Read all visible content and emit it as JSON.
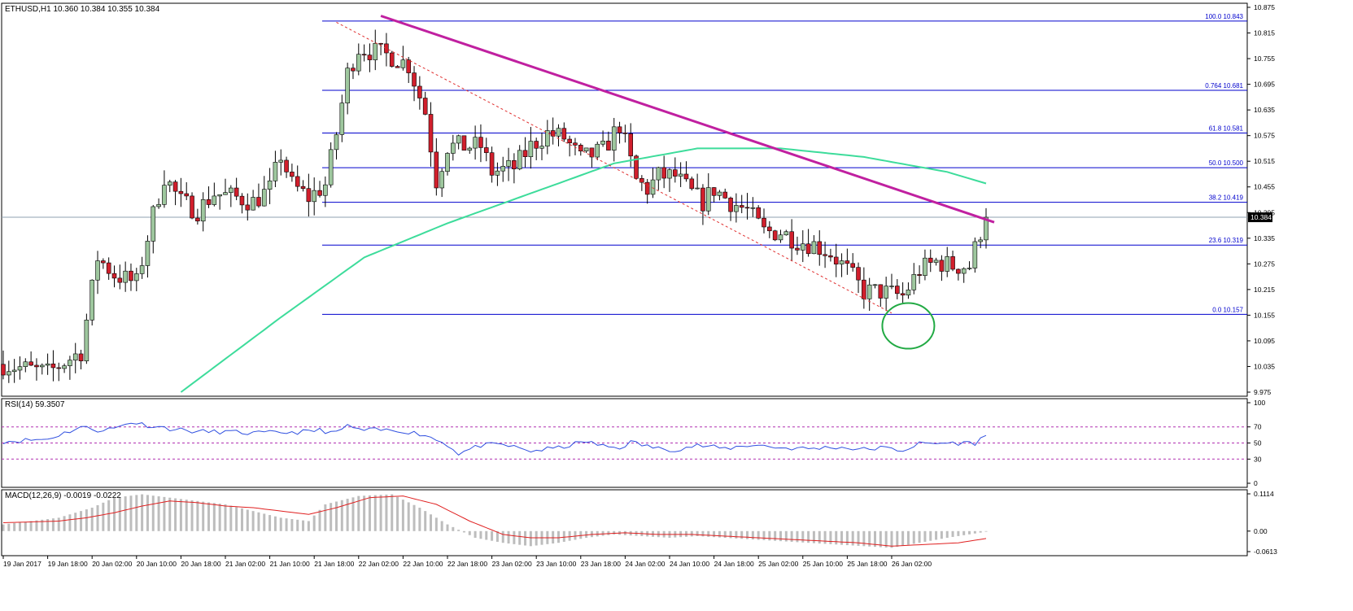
{
  "price_panel": {
    "header": "ETHUSD,H1  10.360 10.384 10.355 10.384",
    "y_ticks": [
      "10.875",
      "10.815",
      "10.755",
      "10.695",
      "10.635",
      "10.575",
      "10.515",
      "10.455",
      "10.395",
      "10.335",
      "10.275",
      "10.215",
      "10.155",
      "10.095",
      "10.035",
      "9.975"
    ],
    "current_price_label": "10.384"
  },
  "rsi_panel": {
    "header": "RSI(14) 59.3507",
    "y_ticks": [
      "100",
      "70",
      "50",
      "30",
      "0"
    ]
  },
  "macd_panel": {
    "header": "MACD(12,26,9) -0.0019 -0.0222",
    "y_ticks": [
      "0.1114",
      "0.00",
      "-0.0613"
    ]
  },
  "x_ticks": [
    "19 Jan 2017",
    "19 Jan 18:00",
    "20 Jan 02:00",
    "20 Jan 10:00",
    "20 Jan 18:00",
    "21 Jan 02:00",
    "21 Jan 10:00",
    "21 Jan 18:00",
    "22 Jan 02:00",
    "22 Jan 10:00",
    "22 Jan 18:00",
    "23 Jan 02:00",
    "23 Jan 10:00",
    "23 Jan 18:00",
    "24 Jan 02:00",
    "24 Jan 10:00",
    "24 Jan 18:00",
    "25 Jan 02:00",
    "25 Jan 10:00",
    "25 Jan 18:00",
    "26 Jan 02:00"
  ],
  "colors": {
    "bull_candle": "#9ec79e",
    "bear_candle": "#d11f2c",
    "wick": "#000000",
    "fib_line": "#0000cd",
    "fib_label": "#0000cd",
    "trendline": "#c020a0",
    "channel_line": "#e03030",
    "ma_line": "#3ddc9b",
    "rsi_line": "#3050e0",
    "rsi_levels": "#b030b0",
    "macd_histogram": "#bdbdbd",
    "macd_signal": "#e02020",
    "highlight_circle": "#22aa44",
    "price_line": "#8fa0b0"
  },
  "chart_data": [
    {
      "type": "candlestick",
      "symbol": "ETHUSD",
      "timeframe": "H1",
      "x_axis": "time",
      "ylim": [
        9.975,
        10.875
      ],
      "last_price": 10.384,
      "fibonacci_levels": [
        {
          "label": "100.0",
          "price": 10.843
        },
        {
          "label": "0.764",
          "price": 10.681
        },
        {
          "label": "61.8",
          "price": 10.581
        },
        {
          "label": "50.0",
          "price": 10.5
        },
        {
          "label": "38.2",
          "price": 10.419
        },
        {
          "label": "23.6",
          "price": 10.319
        },
        {
          "label": "0.0",
          "price": 10.157
        }
      ],
      "price_knots": [
        [
          0,
          10.04
        ],
        [
          8,
          10.02
        ],
        [
          14,
          10.07
        ],
        [
          17,
          10.29
        ],
        [
          20,
          10.25
        ],
        [
          24,
          10.23
        ],
        [
          27,
          10.39
        ],
        [
          29,
          10.48
        ],
        [
          32,
          10.42
        ],
        [
          35,
          10.4
        ],
        [
          38,
          10.44
        ],
        [
          42,
          10.43
        ],
        [
          45,
          10.42
        ],
        [
          48,
          10.45
        ],
        [
          50,
          10.53
        ],
        [
          52,
          10.46
        ],
        [
          55,
          10.43
        ],
        [
          58,
          10.46
        ],
        [
          60,
          10.58
        ],
        [
          62,
          10.72
        ],
        [
          64,
          10.78
        ],
        [
          67,
          10.77
        ],
        [
          70,
          10.76
        ],
        [
          73,
          10.74
        ],
        [
          76,
          10.63
        ],
        [
          78,
          10.47
        ],
        [
          80,
          10.55
        ],
        [
          83,
          10.55
        ],
        [
          86,
          10.55
        ],
        [
          88,
          10.49
        ],
        [
          92,
          10.5
        ],
        [
          95,
          10.55
        ],
        [
          98,
          10.58
        ],
        [
          101,
          10.57
        ],
        [
          104,
          10.52
        ],
        [
          108,
          10.54
        ],
        [
          111,
          10.6
        ],
        [
          114,
          10.47
        ],
        [
          116,
          10.45
        ],
        [
          118,
          10.48
        ],
        [
          121,
          10.48
        ],
        [
          124,
          10.44
        ],
        [
          126,
          10.42
        ],
        [
          128,
          10.45
        ],
        [
          131,
          10.42
        ],
        [
          134,
          10.4
        ],
        [
          137,
          10.35
        ],
        [
          140,
          10.35
        ],
        [
          143,
          10.33
        ],
        [
          146,
          10.32
        ],
        [
          149,
          10.3
        ],
        [
          152,
          10.26
        ],
        [
          155,
          10.21
        ],
        [
          158,
          10.21
        ],
        [
          162,
          10.2
        ],
        [
          165,
          10.26
        ],
        [
          168,
          10.28
        ],
        [
          171,
          10.27
        ],
        [
          174,
          10.27
        ],
        [
          176,
          10.35
        ],
        [
          177,
          10.384
        ]
      ],
      "channel_line": [
        [
          60,
          10.84
        ],
        [
          160,
          10.16
        ]
      ],
      "resistance_trendline": [
        [
          68,
          10.855
        ],
        [
          177,
          10.38
        ]
      ],
      "moving_average": [
        [
          32,
          9.975
        ],
        [
          50,
          10.15
        ],
        [
          65,
          10.29
        ],
        [
          80,
          10.37
        ],
        [
          95,
          10.44
        ],
        [
          110,
          10.51
        ],
        [
          125,
          10.545
        ],
        [
          140,
          10.545
        ],
        [
          155,
          10.525
        ],
        [
          170,
          10.49
        ],
        [
          177,
          10.463
        ]
      ],
      "highlight_circle_center": [
        163,
        10.13
      ]
    },
    {
      "type": "line",
      "name": "RSI(14)",
      "last_value": 59.3507,
      "ylim": [
        0,
        100
      ],
      "reference_levels": [
        70,
        50,
        30
      ],
      "values_knots": [
        [
          0,
          52
        ],
        [
          8,
          55
        ],
        [
          14,
          70
        ],
        [
          17,
          66
        ],
        [
          20,
          68
        ],
        [
          23,
          76
        ],
        [
          26,
          72
        ],
        [
          30,
          68
        ],
        [
          35,
          64
        ],
        [
          40,
          64
        ],
        [
          45,
          62
        ],
        [
          50,
          63
        ],
        [
          55,
          64
        ],
        [
          57,
          66
        ],
        [
          60,
          62
        ],
        [
          62,
          72
        ],
        [
          64,
          66
        ],
        [
          68,
          66
        ],
        [
          72,
          65
        ],
        [
          76,
          60
        ],
        [
          80,
          48
        ],
        [
          82,
          37
        ],
        [
          86,
          47
        ],
        [
          90,
          48
        ],
        [
          95,
          40
        ],
        [
          100,
          44
        ],
        [
          105,
          52
        ],
        [
          108,
          46
        ],
        [
          111,
          44
        ],
        [
          113,
          51
        ],
        [
          118,
          43
        ],
        [
          121,
          42
        ],
        [
          125,
          47
        ],
        [
          130,
          43
        ],
        [
          135,
          48
        ],
        [
          140,
          44
        ],
        [
          145,
          43
        ],
        [
          150,
          45
        ],
        [
          155,
          42
        ],
        [
          158,
          44
        ],
        [
          162,
          41
        ],
        [
          165,
          49
        ],
        [
          170,
          50
        ],
        [
          175,
          50
        ],
        [
          177,
          59.35
        ]
      ]
    },
    {
      "type": "bar",
      "name": "MACD(12,26,9)",
      "macd_last": -0.0019,
      "signal_last": -0.0222,
      "ylim": [
        -0.0613,
        0.1114
      ],
      "histogram_knots": [
        [
          0,
          0.02
        ],
        [
          10,
          0.04
        ],
        [
          16,
          0.07
        ],
        [
          20,
          0.1
        ],
        [
          25,
          0.11
        ],
        [
          30,
          0.1
        ],
        [
          35,
          0.09
        ],
        [
          40,
          0.08
        ],
        [
          45,
          0.06
        ],
        [
          50,
          0.04
        ],
        [
          55,
          0.03
        ],
        [
          58,
          0.08
        ],
        [
          64,
          0.105
        ],
        [
          70,
          0.11
        ],
        [
          75,
          0.07
        ],
        [
          80,
          0.02
        ],
        [
          85,
          -0.02
        ],
        [
          90,
          -0.035
        ],
        [
          95,
          -0.045
        ],
        [
          100,
          -0.035
        ],
        [
          105,
          -0.02
        ],
        [
          110,
          -0.01
        ],
        [
          115,
          -0.015
        ],
        [
          120,
          -0.02
        ],
        [
          125,
          -0.015
        ],
        [
          130,
          -0.02
        ],
        [
          135,
          -0.025
        ],
        [
          140,
          -0.03
        ],
        [
          145,
          -0.035
        ],
        [
          150,
          -0.04
        ],
        [
          155,
          -0.045
        ],
        [
          160,
          -0.05
        ],
        [
          165,
          -0.035
        ],
        [
          170,
          -0.02
        ],
        [
          177,
          -0.0019
        ]
      ],
      "signal_knots": [
        [
          0,
          0.025
        ],
        [
          10,
          0.03
        ],
        [
          15,
          0.04
        ],
        [
          20,
          0.055
        ],
        [
          25,
          0.075
        ],
        [
          30,
          0.09
        ],
        [
          35,
          0.085
        ],
        [
          40,
          0.075
        ],
        [
          45,
          0.07
        ],
        [
          50,
          0.06
        ],
        [
          55,
          0.05
        ],
        [
          60,
          0.07
        ],
        [
          66,
          0.1
        ],
        [
          72,
          0.105
        ],
        [
          78,
          0.08
        ],
        [
          84,
          0.03
        ],
        [
          90,
          -0.01
        ],
        [
          95,
          -0.02
        ],
        [
          100,
          -0.02
        ],
        [
          106,
          -0.01
        ],
        [
          112,
          -0.005
        ],
        [
          118,
          -0.01
        ],
        [
          124,
          -0.01
        ],
        [
          130,
          -0.015
        ],
        [
          136,
          -0.02
        ],
        [
          142,
          -0.025
        ],
        [
          148,
          -0.03
        ],
        [
          154,
          -0.035
        ],
        [
          160,
          -0.045
        ],
        [
          166,
          -0.04
        ],
        [
          172,
          -0.035
        ],
        [
          177,
          -0.0222
        ]
      ]
    }
  ]
}
